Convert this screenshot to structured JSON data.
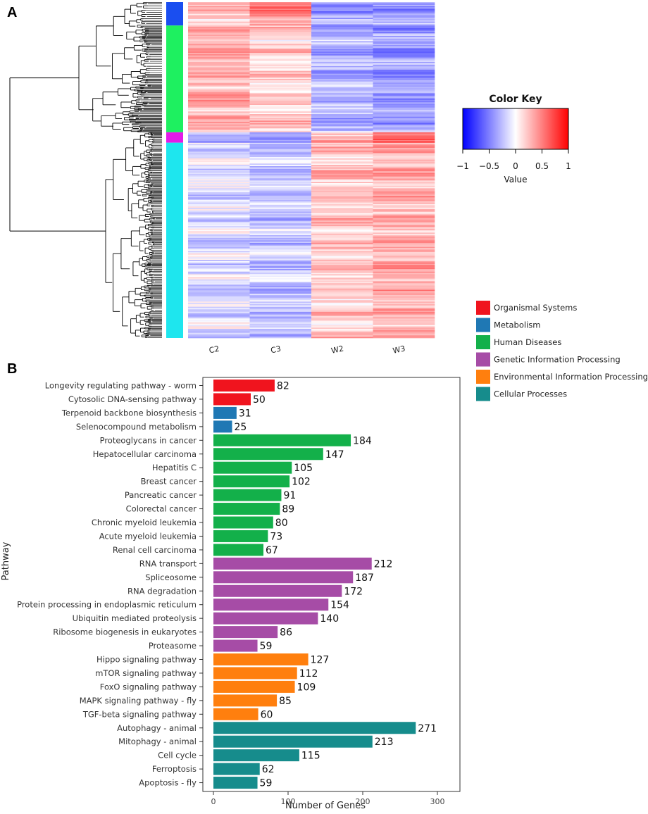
{
  "panel_labels": {
    "a": "A",
    "b": "B"
  },
  "chart_data": [
    {
      "type": "heatmap",
      "columns": [
        "C2",
        "C3",
        "W2",
        "W3"
      ],
      "row_clusters": [
        {
          "color": "#1a4ef0",
          "size": 18,
          "profile": [
            0.25,
            0.45,
            -0.4,
            -0.35
          ]
        },
        {
          "color": "#1ef060",
          "size": 82,
          "profile": [
            0.3,
            0.18,
            -0.3,
            -0.35
          ]
        },
        {
          "color": "#e41ae8",
          "size": 8,
          "profile": [
            -0.4,
            -0.35,
            0.3,
            0.55
          ]
        },
        {
          "color": "#1ee6ee",
          "size": 150,
          "profile": [
            -0.12,
            -0.22,
            0.22,
            0.3
          ]
        }
      ],
      "color_key": {
        "title": "Color Key",
        "xlabel": "Value",
        "ticks": [
          "−1",
          "−0.5",
          "0",
          "0.5",
          "1"
        ],
        "range": [
          -1,
          1
        ],
        "low_color": "#0000ff",
        "mid_color": "#ffffff",
        "high_color": "#ff0000"
      }
    },
    {
      "type": "bar",
      "orientation": "horizontal",
      "xlabel": "Number of Genes",
      "ylabel": "Pathway",
      "xlim": [
        0,
        330
      ],
      "xticks": [
        0,
        100,
        200,
        300
      ],
      "categories": [
        "Longevity regulating pathway - worm",
        "Cytosolic DNA-sensing pathway",
        "Terpenoid backbone biosynthesis",
        "Selenocompound metabolism",
        "Proteoglycans in cancer",
        "Hepatocellular carcinoma",
        "Hepatitis C",
        "Breast cancer",
        "Pancreatic cancer",
        "Colorectal cancer",
        "Chronic myeloid leukemia",
        "Acute myeloid leukemia",
        "Renal cell carcinoma",
        "RNA transport",
        "Spliceosome",
        "RNA degradation",
        "Protein processing in endoplasmic reticulum",
        "Ubiquitin mediated proteolysis",
        "Ribosome biogenesis in eukaryotes",
        "Proteasome",
        "Hippo signaling pathway",
        "mTOR signaling pathway",
        "FoxO signaling pathway",
        "MAPK signaling pathway - fly",
        "TGF-beta signaling pathway",
        "Autophagy - animal",
        "Mitophagy - animal",
        "Cell cycle",
        "Ferroptosis",
        "Apoptosis - fly"
      ],
      "values": [
        82,
        50,
        31,
        25,
        184,
        147,
        105,
        102,
        91,
        89,
        80,
        73,
        67,
        212,
        187,
        172,
        154,
        140,
        86,
        59,
        127,
        112,
        109,
        85,
        60,
        271,
        213,
        115,
        62,
        59
      ],
      "groups": [
        0,
        0,
        1,
        1,
        2,
        2,
        2,
        2,
        2,
        2,
        2,
        2,
        2,
        3,
        3,
        3,
        3,
        3,
        3,
        3,
        4,
        4,
        4,
        4,
        4,
        5,
        5,
        5,
        5,
        5
      ],
      "legend": [
        {
          "name": "Organismal Systems",
          "color": "#f0141e"
        },
        {
          "name": "Metabolism",
          "color": "#1f78b4"
        },
        {
          "name": "Human Diseases",
          "color": "#13b04a"
        },
        {
          "name": "Genetic Information Processing",
          "color": "#a64ca6"
        },
        {
          "name": "Environmental Information Processing",
          "color": "#ff7f0e"
        },
        {
          "name": "Cellular Processes",
          "color": "#168c8c"
        }
      ]
    }
  ]
}
